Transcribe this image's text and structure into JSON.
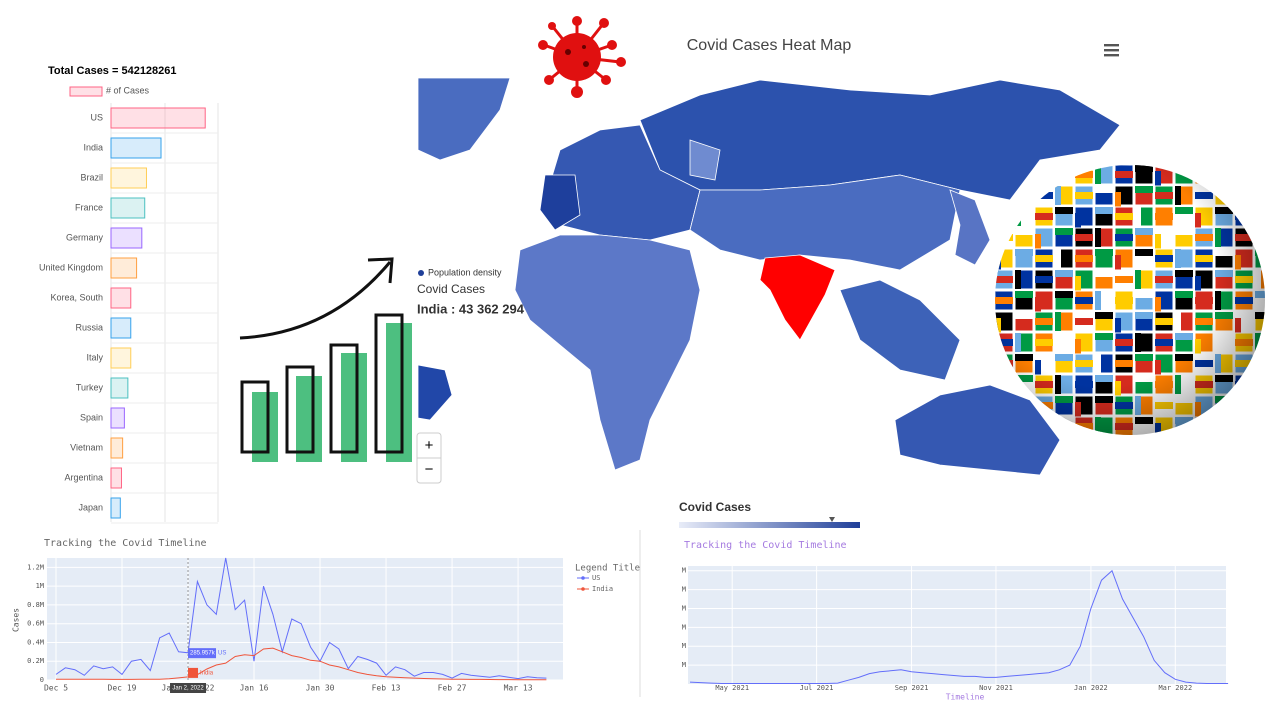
{
  "chart_data": [
    {
      "type": "hbar",
      "title": "Total Cases = 542128261",
      "legend": "# of Cases",
      "categories": [
        "US",
        "India",
        "Brazil",
        "France",
        "Germany",
        "United Kingdom",
        "Korea, South",
        "Russia",
        "Italy",
        "Turkey",
        "Spain",
        "Vietnam",
        "Argentina",
        "Japan"
      ],
      "values": [
        81000000,
        43000000,
        30500000,
        29000000,
        26500000,
        22000000,
        17000000,
        17000000,
        17000000,
        14500000,
        11500000,
        10000000,
        9000000,
        8000000
      ],
      "colors": [
        "#ff6384",
        "#36a2eb",
        "#ffce56",
        "#4bc0c0",
        "#9966ff",
        "#ff9f40"
      ],
      "xlim": [
        0,
        92000000
      ]
    },
    {
      "type": "line",
      "title": "Tracking the Covid Timeline",
      "y_label": "Cases",
      "legend_title": "Legend Title",
      "categories": [
        "Dec 5",
        null,
        null,
        null,
        null,
        null,
        null,
        "Dec 19",
        null,
        null,
        null,
        null,
        null,
        null,
        "Jan 2, 2022",
        null,
        null,
        null,
        null,
        null,
        null,
        "Jan 16",
        null,
        null,
        null,
        null,
        null,
        null,
        "Jan 30",
        null,
        null,
        null,
        null,
        null,
        null,
        "Feb 13",
        null,
        null,
        null,
        null,
        null,
        null,
        "Feb 27",
        null,
        null,
        null,
        null,
        null,
        null,
        "Mar 13",
        null,
        null,
        null
      ],
      "series": [
        {
          "name": "US",
          "color": "#636efa",
          "values": [
            60000,
            130000,
            110000,
            50000,
            150000,
            120000,
            140000,
            60000,
            200000,
            220000,
            100000,
            450000,
            500000,
            300000,
            290000,
            1050000,
            800000,
            700000,
            1300000,
            750000,
            850000,
            200000,
            1000000,
            700000,
            300000,
            650000,
            600000,
            350000,
            200000,
            400000,
            330000,
            120000,
            250000,
            220000,
            180000,
            50000,
            140000,
            110000,
            40000,
            80000,
            80000,
            60000,
            20000,
            70000,
            50000,
            40000,
            30000,
            45000,
            30000,
            15000,
            35000,
            25000,
            20000
          ]
        },
        {
          "name": "India",
          "color": "#ef553b",
          "values": [
            9000,
            8500,
            8000,
            7500,
            7000,
            7000,
            6500,
            6500,
            6500,
            7000,
            7000,
            9000,
            13000,
            22000,
            33000,
            58000,
            117000,
            160000,
            180000,
            250000,
            270000,
            260000,
            330000,
            340000,
            300000,
            260000,
            240000,
            210000,
            200000,
            160000,
            140000,
            110000,
            80000,
            60000,
            45000,
            35000,
            30000,
            25000,
            20000,
            16000,
            14000,
            11000,
            9000,
            7000,
            6500,
            6000,
            5000,
            4500,
            4000,
            3500,
            3000,
            2500,
            2000
          ]
        }
      ],
      "ylim": [
        0,
        1300000
      ],
      "yticks": [
        0,
        {
          "value": 200000,
          "label": "0.2M"
        },
        {
          "value": 400000,
          "label": "0.4M"
        },
        {
          "value": 600000,
          "label": "0.6M"
        },
        {
          "value": 800000,
          "label": "0.8M"
        },
        {
          "value": 1000000,
          "label": "1M"
        },
        {
          "value": 1200000,
          "label": "1.2M"
        }
      ],
      "grid": true,
      "annotations": [
        {
          "text": "285.957k",
          "x": "Jan 2, 2022",
          "y": 285957
        }
      ]
    },
    {
      "type": "line",
      "title": "Tracking the Covid Timeline",
      "x_label": "Timeline",
      "categories": [
        null,
        null,
        null,
        null,
        "May 2021",
        null,
        null,
        null,
        null,
        null,
        null,
        null,
        "Jul 2021",
        null,
        null,
        null,
        null,
        null,
        null,
        null,
        null,
        "Sep 2021",
        null,
        null,
        null,
        null,
        null,
        null,
        null,
        "Nov 2021",
        null,
        null,
        null,
        null,
        null,
        null,
        null,
        null,
        "Jan 2022",
        null,
        null,
        null,
        null,
        null,
        null,
        null,
        "Mar 2022",
        null,
        null,
        null,
        null,
        null
      ],
      "series": [
        {
          "color": "#636efa",
          "values": [
            20000,
            15000,
            10000,
            5000,
            5000,
            5000,
            5000,
            5000,
            5000,
            5000,
            5000,
            5000,
            5000,
            5000,
            10000,
            40000,
            70000,
            110000,
            130000,
            140000,
            150000,
            130000,
            120000,
            110000,
            100000,
            90000,
            80000,
            80000,
            70000,
            70000,
            80000,
            90000,
            100000,
            110000,
            120000,
            150000,
            200000,
            400000,
            800000,
            1100000,
            1200000,
            900000,
            700000,
            500000,
            250000,
            120000,
            50000,
            20000,
            10000,
            5000,
            5000,
            5000
          ]
        }
      ],
      "ylim": [
        0,
        1250000
      ],
      "yticks": [
        {
          "value": 200000,
          "label": "M"
        },
        {
          "value": 400000,
          "label": "M"
        },
        {
          "value": 600000,
          "label": "M"
        },
        {
          "value": 800000,
          "label": "M"
        },
        {
          "value": 1000000,
          "label": "M"
        },
        {
          "value": 1200000,
          "label": "M"
        }
      ],
      "grid": true
    }
  ],
  "map": {
    "title": "Covid Cases Heat Map",
    "tooltip": {
      "legend": "Population density",
      "label": "Covid Cases",
      "value": "India : 43 362 294"
    },
    "legend_title": "Covid Cases",
    "zoom_in": "+",
    "zoom_out": "−"
  }
}
